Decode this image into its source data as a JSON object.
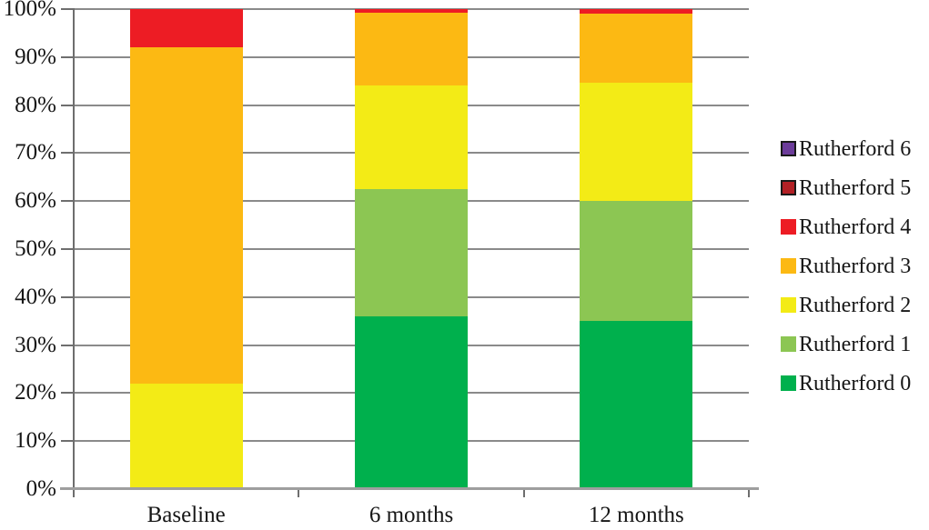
{
  "chart_data": {
    "type": "bar",
    "stacked": true,
    "title": "",
    "xlabel": "",
    "ylabel": "",
    "categories": [
      "Baseline",
      "6 months",
      "12 months"
    ],
    "series": [
      {
        "name": "Rutherford 0",
        "color": "#00B04D",
        "border": null,
        "values": [
          0,
          36,
          35
        ]
      },
      {
        "name": "Rutherford 1",
        "color": "#8CC653",
        "border": null,
        "values": [
          0,
          26.5,
          25
        ]
      },
      {
        "name": "Rutherford 2",
        "color": "#F3EB16",
        "border": null,
        "values": [
          22,
          21.5,
          24.7
        ]
      },
      {
        "name": "Rutherford 3",
        "color": "#FCB913",
        "border": null,
        "values": [
          70,
          15.3,
          14.3
        ]
      },
      {
        "name": "Rutherford 4",
        "color": "#ED1C24",
        "border": null,
        "values": [
          8,
          0.7,
          1
        ]
      },
      {
        "name": "Rutherford 5",
        "color": "#B22025",
        "border": "#1A1A1A",
        "values": [
          0,
          0,
          0
        ]
      },
      {
        "name": "Rutherford 6",
        "color": "#6C3C9A",
        "border": "#1A1A1A",
        "values": [
          0,
          0,
          0
        ]
      }
    ],
    "y_axis": {
      "min": 0,
      "max": 100,
      "tick_labels": [
        "0%",
        "10%",
        "20%",
        "30%",
        "40%",
        "50%",
        "60%",
        "70%",
        "80%",
        "90%",
        "100%"
      ]
    },
    "grid": true,
    "legend_position": "right",
    "legend_order_top_to_bottom": [
      "Rutherford 6",
      "Rutherford 5",
      "Rutherford 4",
      "Rutherford 3",
      "Rutherford 2",
      "Rutherford 1",
      "Rutherford 0"
    ]
  },
  "style_colors": {
    "gridline": "#8a8a8a",
    "axis_line": "#6e6e6e",
    "bottom_axis_line": "#9e9e9e",
    "text": "#161616",
    "background": "#ffffff"
  }
}
